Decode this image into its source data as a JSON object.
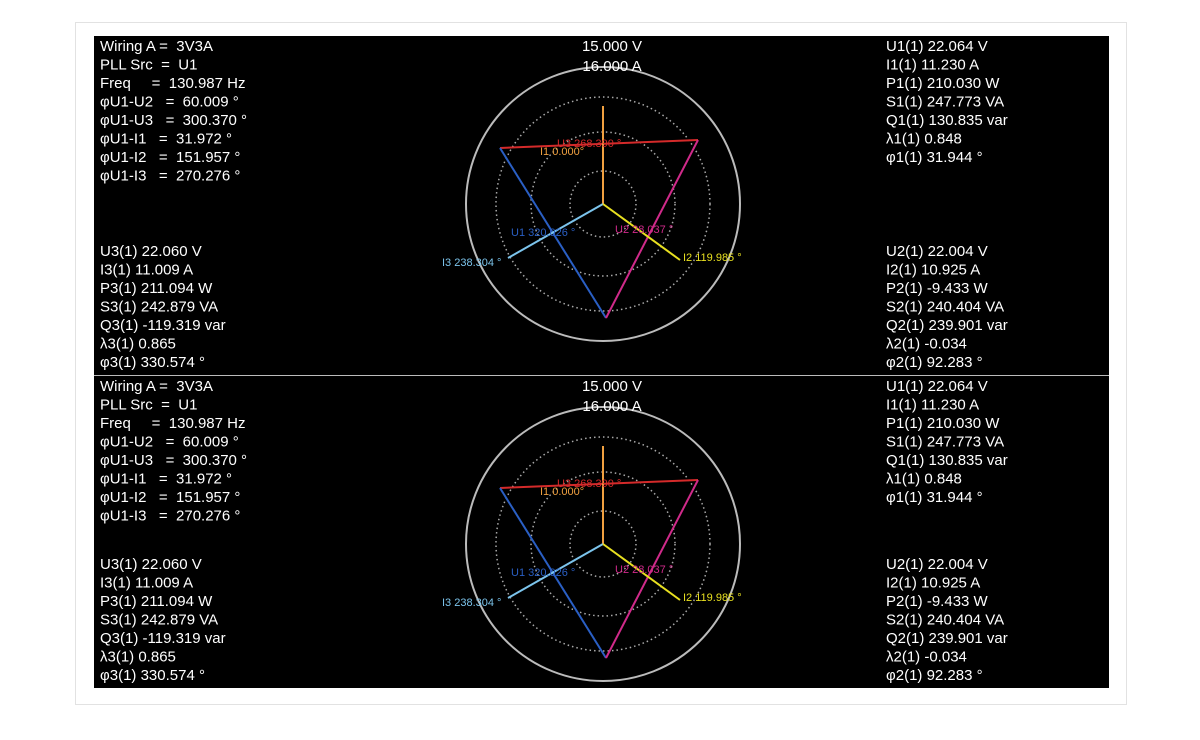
{
  "panels": [
    {
      "scale": [
        "15.000 V",
        "16.000 A"
      ],
      "left_top": [
        "Wiring A =  3V3A",
        "PLL Src  =  U1",
        "Freq     =  130.987 Hz",
        "φU1-U2   =  60.009 °",
        "φU1-U3   =  300.370 °",
        "φU1-I1   =  31.972 °",
        "φU1-I2   =  151.957 °",
        "φU1-I3   =  270.276 °"
      ],
      "left_bottom": [
        "U3(1) 22.060 V",
        "I3(1) 11.009 A",
        "P3(1) 211.094 W",
        "S3(1) 242.879 VA",
        "Q3(1) -119.319 var",
        "λ3(1) 0.865",
        "φ3(1) 330.574 °"
      ],
      "right_top": [
        "U1(1) 22.064 V",
        "I1(1) 11.230 A",
        "P1(1) 210.030 W",
        "S1(1) 247.773 VA",
        "Q1(1) 130.835 var",
        "λ1(1) 0.848",
        "φ1(1) 31.944 °"
      ],
      "right_bottom": [
        "U2(1) 22.004 V",
        "I2(1) 10.925 A",
        "P2(1) -9.433 W",
        "S2(1) 240.404 VA",
        "Q2(1) 239.901 var",
        "λ2(1) -0.034",
        "φ2(1) 92.283 °"
      ],
      "phasors": [
        "I1 0.000°",
        "U3 268.390 °",
        "U1 320.026 °",
        "U2 28.037 °",
        "I3 238.304 °",
        "I2 119.985 °"
      ]
    },
    {
      "scale": [
        "15.000 V",
        "16.000 A"
      ],
      "left_top": [
        "Wiring A =  3V3A",
        "PLL Src  =  U1",
        "Freq     =  130.987 Hz",
        "φU1-U2   =  60.009 °",
        "φU1-U3   =  300.370 °",
        "φU1-I1   =  31.972 °",
        "φU1-I2   =  151.957 °",
        "φU1-I3   =  270.276 °"
      ],
      "left_bottom": [
        "U3(1) 22.060 V",
        "I3(1) 11.009 A",
        "P3(1) 211.094 W",
        "S3(1) 242.879 VA",
        "Q3(1) -119.319 var",
        "λ3(1) 0.865",
        "φ3(1) 330.574 °"
      ],
      "right_top": [
        "U1(1) 22.064 V",
        "I1(1) 11.230 A",
        "P1(1) 210.030 W",
        "S1(1) 247.773 VA",
        "Q1(1) 130.835 var",
        "λ1(1) 0.848",
        "φ1(1) 31.944 °"
      ],
      "right_bottom": [
        "U2(1) 22.004 V",
        "I2(1) 10.925 A",
        "P2(1) -9.433 W",
        "S2(1) 240.404 VA",
        "Q2(1) 239.901 var",
        "λ2(1) -0.034",
        "φ2(1) 92.283 °"
      ],
      "phasors": [
        "I1 0.000°",
        "U3 268.390 °",
        "U1 320.026 °",
        "U2 28.037 °",
        "I3 238.304 °",
        "I2 119.985 °"
      ]
    }
  ]
}
